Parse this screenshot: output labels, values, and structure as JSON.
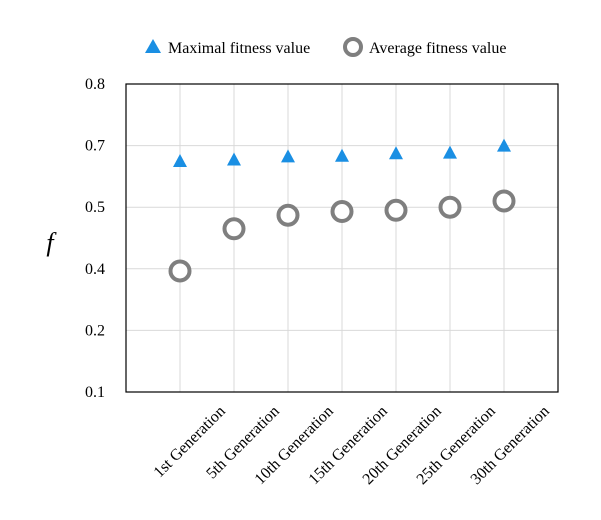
{
  "chart_data": {
    "type": "scatter",
    "title": "",
    "xlabel": "",
    "ylabel": "f",
    "categories": [
      "1st Generation",
      "5th Generation",
      "10th Generation",
      "15th Generation",
      "20th Generation",
      "25th Generation",
      "30th Generation"
    ],
    "y_ticks": [
      "0.8",
      "0.7",
      "0.5",
      "0.4",
      "0.2",
      "0.1"
    ],
    "grid": true,
    "legend_position": "top",
    "series": [
      {
        "name": "Maximal fitness value",
        "marker": "triangle",
        "color": "#1a8fe3",
        "values": [
          0.65,
          0.655,
          0.665,
          0.667,
          0.675,
          0.677,
          0.7
        ]
      },
      {
        "name": "Average fitness value",
        "marker": "circle-open",
        "color": "#7f7f7f",
        "values": [
          0.393,
          0.465,
          0.487,
          0.493,
          0.495,
          0.5,
          0.52
        ]
      }
    ]
  }
}
